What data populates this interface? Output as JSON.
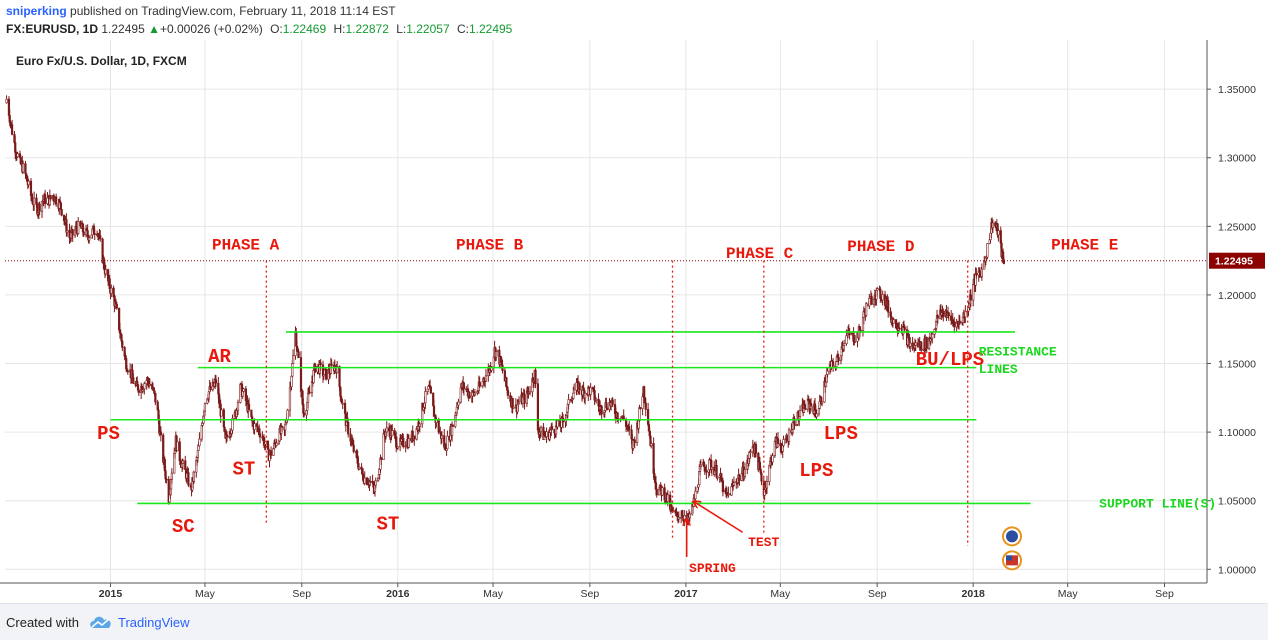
{
  "header": {
    "author": "sniperking",
    "published": "published on TradingView.com, February 11, 2018 11:14 EST",
    "symbol": "FX:EURUSD, 1D",
    "last": "1.22495",
    "change_arrow": "▲",
    "change": "+0.00026 (+0.02%)",
    "o_label": "O:",
    "o_value": "1.22469",
    "h_label": "H:",
    "h_value": "1.22872",
    "l_label": "L:",
    "l_value": "1.22057",
    "c_label": "C:",
    "c_value": "1.22495"
  },
  "footer": {
    "created_with": "Created with",
    "brand": "TradingView"
  },
  "colors": {
    "candle": "#7a1a1a",
    "annotation": "#e8190c",
    "trendline": "#19e81d",
    "grid": "#e6e6e6",
    "price_line": "#8b0000",
    "price_badge": "#8b0000",
    "resistance_text": "#19d81d"
  },
  "chart_data": {
    "type": "candlestick",
    "title": "Euro Fx/U.S. Dollar, 1D, FXCM",
    "y_range": [
      0.99,
      1.38
    ],
    "x_range": [
      "2014-08-20",
      "2018-10-25"
    ],
    "y_ticks": [
      "1.00000",
      "1.05000",
      "1.10000",
      "1.15000",
      "1.20000",
      "1.25000",
      "1.30000",
      "1.35000"
    ],
    "x_ticks": [
      {
        "label": "2015",
        "date": "2015-01-01",
        "bold": true
      },
      {
        "label": "May",
        "date": "2015-05-01",
        "bold": false
      },
      {
        "label": "Sep",
        "date": "2015-09-01",
        "bold": false
      },
      {
        "label": "2016",
        "date": "2016-01-01",
        "bold": true
      },
      {
        "label": "May",
        "date": "2016-05-01",
        "bold": false
      },
      {
        "label": "Sep",
        "date": "2016-09-01",
        "bold": false
      },
      {
        "label": "2017",
        "date": "2017-01-01",
        "bold": true
      },
      {
        "label": "May",
        "date": "2017-05-01",
        "bold": false
      },
      {
        "label": "Sep",
        "date": "2017-09-01",
        "bold": false
      },
      {
        "label": "2018",
        "date": "2018-01-01",
        "bold": true
      },
      {
        "label": "May",
        "date": "2018-05-01",
        "bold": false
      },
      {
        "label": "Sep",
        "date": "2018-09-01",
        "bold": false
      }
    ],
    "current_price": 1.22495,
    "price_path": [
      [
        "2014-08-22",
        1.34
      ],
      [
        "2014-09-08",
        1.295
      ],
      [
        "2014-10-01",
        1.262
      ],
      [
        "2014-10-20",
        1.275
      ],
      [
        "2014-11-10",
        1.245
      ],
      [
        "2014-12-01",
        1.247
      ],
      [
        "2014-12-15",
        1.245
      ],
      [
        "2015-01-05",
        1.195
      ],
      [
        "2015-01-20",
        1.155
      ],
      [
        "2015-02-01",
        1.13
      ],
      [
        "2015-02-15",
        1.14
      ],
      [
        "2015-03-01",
        1.12
      ],
      [
        "2015-03-16",
        1.05
      ],
      [
        "2015-03-25",
        1.095
      ],
      [
        "2015-04-13",
        1.055
      ],
      [
        "2015-05-01",
        1.12
      ],
      [
        "2015-05-15",
        1.14
      ],
      [
        "2015-05-27",
        1.09
      ],
      [
        "2015-06-15",
        1.13
      ],
      [
        "2015-07-08",
        1.1
      ],
      [
        "2015-07-20",
        1.085
      ],
      [
        "2015-08-10",
        1.1
      ],
      [
        "2015-08-24",
        1.17
      ],
      [
        "2015-09-03",
        1.115
      ],
      [
        "2015-09-18",
        1.145
      ],
      [
        "2015-10-15",
        1.145
      ],
      [
        "2015-11-05",
        1.085
      ],
      [
        "2015-12-02",
        1.055
      ],
      [
        "2015-12-15",
        1.1
      ],
      [
        "2016-01-15",
        1.09
      ],
      [
        "2016-02-10",
        1.13
      ],
      [
        "2016-03-01",
        1.085
      ],
      [
        "2016-03-20",
        1.13
      ],
      [
        "2016-04-15",
        1.13
      ],
      [
        "2016-05-03",
        1.16
      ],
      [
        "2016-05-30",
        1.115
      ],
      [
        "2016-06-23",
        1.14
      ],
      [
        "2016-06-27",
        1.1
      ],
      [
        "2016-07-20",
        1.1
      ],
      [
        "2016-08-18",
        1.135
      ],
      [
        "2016-09-15",
        1.12
      ],
      [
        "2016-10-10",
        1.115
      ],
      [
        "2016-10-25",
        1.09
      ],
      [
        "2016-11-08",
        1.13
      ],
      [
        "2016-11-25",
        1.06
      ],
      [
        "2016-12-20",
        1.04
      ],
      [
        "2017-01-03",
        1.035
      ],
      [
        "2017-01-20",
        1.07
      ],
      [
        "2017-02-01",
        1.08
      ],
      [
        "2017-02-20",
        1.055
      ],
      [
        "2017-03-10",
        1.065
      ],
      [
        "2017-03-27",
        1.09
      ],
      [
        "2017-04-10",
        1.06
      ],
      [
        "2017-04-25",
        1.09
      ],
      [
        "2017-05-10",
        1.095
      ],
      [
        "2017-05-30",
        1.12
      ],
      [
        "2017-06-15",
        1.115
      ],
      [
        "2017-06-30",
        1.14
      ],
      [
        "2017-07-20",
        1.165
      ],
      [
        "2017-08-10",
        1.175
      ],
      [
        "2017-08-29",
        1.205
      ],
      [
        "2017-09-15",
        1.19
      ],
      [
        "2017-10-06",
        1.17
      ],
      [
        "2017-10-27",
        1.16
      ],
      [
        "2017-11-27",
        1.19
      ],
      [
        "2017-12-12",
        1.175
      ],
      [
        "2017-12-29",
        1.2
      ],
      [
        "2018-01-12",
        1.22
      ],
      [
        "2018-01-25",
        1.25
      ],
      [
        "2018-02-02",
        1.245
      ],
      [
        "2018-02-09",
        1.225
      ]
    ],
    "horizontal_lines": [
      {
        "y": 1.173,
        "from": "2015-08-12",
        "to": "2018-02-23"
      },
      {
        "y": 1.147,
        "from": "2015-04-22",
        "to": "2018-01-05"
      },
      {
        "y": 1.109,
        "from": "2015-01-01",
        "to": "2018-01-05"
      },
      {
        "y": 1.048,
        "from": "2015-02-04",
        "to": "2018-03-15"
      }
    ],
    "vertical_lines": [
      {
        "x": "2015-07-18",
        "y_from": 1.225,
        "y_to": 1.033
      },
      {
        "x": "2016-12-15",
        "y_from": 1.225,
        "y_to": 1.023
      },
      {
        "x": "2017-04-10",
        "y_from": 1.225,
        "y_to": 1.025
      },
      {
        "x": "2017-12-25",
        "y_from": 1.225,
        "y_to": 1.017
      }
    ],
    "annotations": [
      {
        "text": "PHASE A",
        "x": "2015-05-10",
        "y": 1.233,
        "kind": "phase"
      },
      {
        "text": "PHASE B",
        "x": "2016-03-15",
        "y": 1.233,
        "kind": "phase"
      },
      {
        "text": "PHASE C",
        "x": "2017-02-21",
        "y": 1.227,
        "kind": "phase"
      },
      {
        "text": "PHASE D",
        "x": "2017-07-25",
        "y": 1.232,
        "kind": "phase"
      },
      {
        "text": "PHASE E",
        "x": "2018-04-10",
        "y": 1.233,
        "kind": "phase"
      },
      {
        "text": "AR",
        "x": "2015-05-05",
        "y": 1.151,
        "kind": "label"
      },
      {
        "text": "PS",
        "x": "2014-12-15",
        "y": 1.095,
        "kind": "label"
      },
      {
        "text": "ST",
        "x": "2015-06-05",
        "y": 1.069,
        "kind": "label"
      },
      {
        "text": "SC",
        "x": "2015-03-20",
        "y": 1.027,
        "kind": "label"
      },
      {
        "text": "ST",
        "x": "2015-12-05",
        "y": 1.029,
        "kind": "label"
      },
      {
        "text": "LPS",
        "x": "2017-05-25",
        "y": 1.068,
        "kind": "label"
      },
      {
        "text": "LPS",
        "x": "2017-06-25",
        "y": 1.095,
        "kind": "label"
      },
      {
        "text": "BU/LPS",
        "x": "2017-10-20",
        "y": 1.149,
        "kind": "label"
      },
      {
        "text": "RESISTANCE",
        "x": "2018-01-08",
        "y": 1.156,
        "kind": "small",
        "color": "green"
      },
      {
        "text": "LINES",
        "x": "2018-01-08",
        "y": 1.143,
        "kind": "small",
        "color": "green"
      },
      {
        "text": "SUPPORT LINE(S)",
        "x": "2018-06-10",
        "y": 1.045,
        "kind": "small",
        "color": "green"
      },
      {
        "text": "TEST",
        "x": "2017-03-21",
        "y": 1.017,
        "kind": "small",
        "color": "red"
      },
      {
        "text": "SPRING",
        "x": "2017-01-05",
        "y": 0.998,
        "kind": "small",
        "color": "red"
      }
    ],
    "arrows": [
      {
        "from": [
          "2017-01-02",
          1.009
        ],
        "to": [
          "2017-01-02",
          1.036
        ]
      },
      {
        "from": [
          "2017-03-14",
          1.027
        ],
        "to": [
          "2017-01-12",
          1.049
        ]
      }
    ]
  }
}
